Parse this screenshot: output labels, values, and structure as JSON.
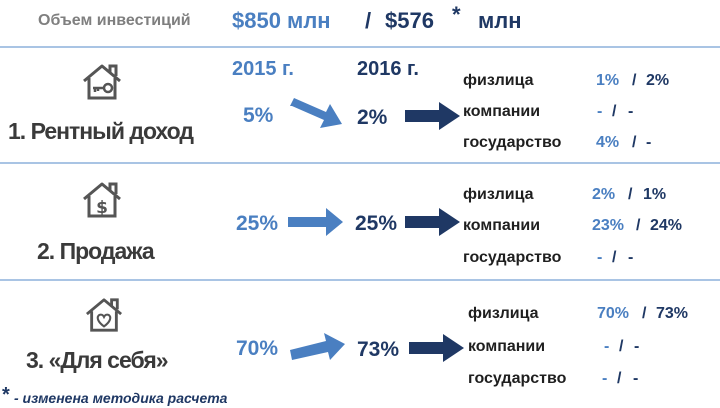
{
  "header": {
    "label": "Объем инвестиций",
    "value_2015": "$850 млн",
    "separator": "/",
    "value_2016": "$576",
    "asterisk": "*",
    "unit": "млн"
  },
  "years": {
    "y2015": "2015 г.",
    "y2016": "2016 г."
  },
  "colors": {
    "light_blue": "#4a7fc1",
    "dark_blue": "#1f3864",
    "divider": "#a9c4e4",
    "title_gray": "#3a3a3a"
  },
  "categories": [
    {
      "icon": "house-key-icon",
      "title": "1. Рентный доход",
      "v2015": "5%",
      "v2016": "2%",
      "entities": [
        {
          "label": "физлица",
          "v1": "1%",
          "sep": "/",
          "v2": "2%"
        },
        {
          "label": "компании",
          "v1": "-",
          "sep": "/",
          "v2": "-"
        },
        {
          "label": "государство",
          "v1": "4%",
          "sep": "/",
          "v2": "-"
        }
      ]
    },
    {
      "icon": "house-dollar-icon",
      "title": "2. Продажа",
      "v2015": "25%",
      "v2016": "25%",
      "entities": [
        {
          "label": "физлица",
          "v1": "2%",
          "sep": "/",
          "v2": "1%"
        },
        {
          "label": "компании",
          "v1": "23%",
          "sep": "/",
          "v2": "24%"
        },
        {
          "label": "государство",
          "v1": "-",
          "sep": "/",
          "v2": "-"
        }
      ]
    },
    {
      "icon": "house-heart-icon",
      "title": "3. «Для себя»",
      "v2015": "70%",
      "v2016": "73%",
      "entities": [
        {
          "label": "физлица",
          "v1": "70%",
          "sep": "/",
          "v2": "73%"
        },
        {
          "label": "компании",
          "v1": "-",
          "sep": "/",
          "v2": "-"
        },
        {
          "label": "государство",
          "v1": "-",
          "sep": "/",
          "v2": "-"
        }
      ]
    }
  ],
  "footnote": {
    "star": "*",
    "text": "- изменена методика расчета"
  }
}
